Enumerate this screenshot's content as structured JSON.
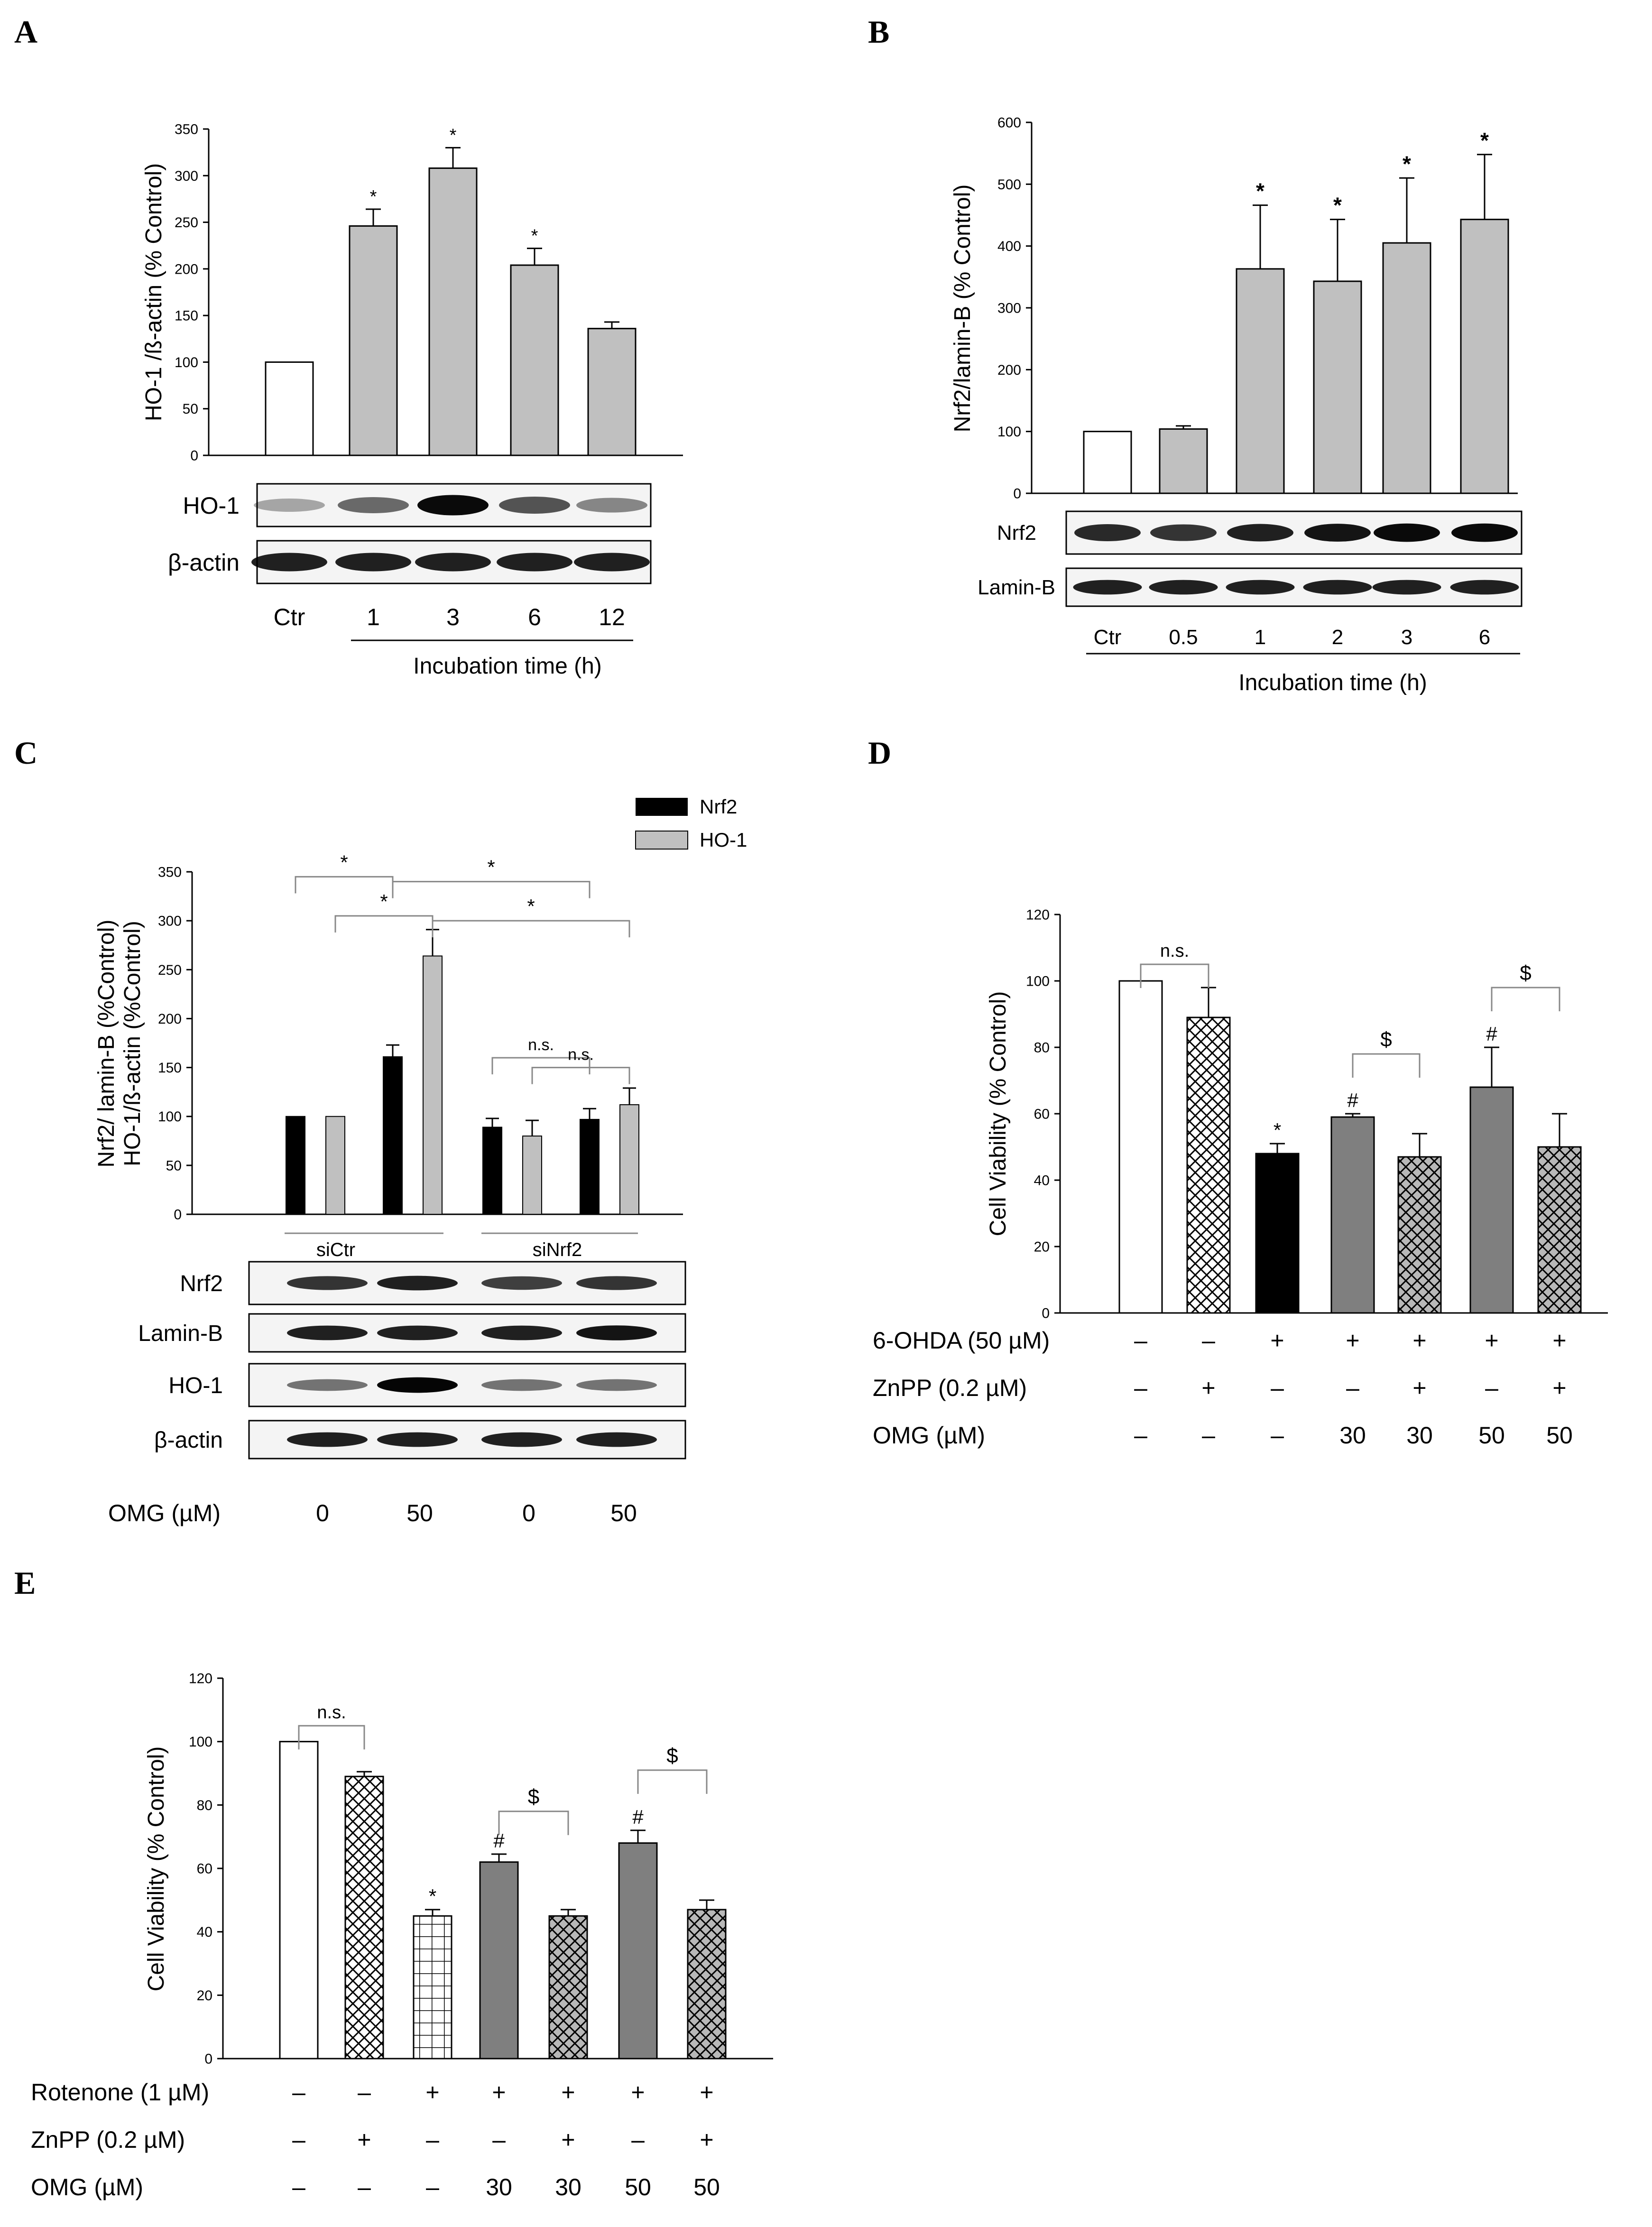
{
  "panels": {
    "A": {
      "letter": "A",
      "chart_data": {
        "type": "bar",
        "ylabel": "HO-1 /ß-actin (% Control)",
        "ylim": [
          0,
          350
        ],
        "yticks": [
          "0",
          "50",
          "100",
          "150",
          "200",
          "250",
          "300",
          "350"
        ],
        "categories": [
          "Ctr",
          "1",
          "3",
          "6",
          "12"
        ],
        "values": [
          100,
          246,
          308,
          204,
          136
        ],
        "errors": [
          0,
          18,
          22,
          18,
          7
        ],
        "significance": [
          "",
          "*",
          "*",
          "*",
          ""
        ],
        "fills": [
          "#ffffff",
          "#c0c0c0",
          "#c0c0c0",
          "#c0c0c0",
          "#c0c0c0"
        ]
      },
      "blots": [
        {
          "label": "HO-1",
          "intensity": [
            0.2,
            0.5,
            0.95,
            0.6,
            0.35
          ]
        },
        {
          "label": "β-actin",
          "intensity": [
            0.85,
            0.85,
            0.85,
            0.85,
            0.85
          ]
        }
      ],
      "xlabel": "Incubation time (h)"
    },
    "B": {
      "letter": "B",
      "chart_data": {
        "type": "bar",
        "ylabel": "Nrf2/lamin-B (% Control)",
        "ylim": [
          0,
          600
        ],
        "yticks": [
          "0",
          "100",
          "200",
          "300",
          "400",
          "500",
          "600"
        ],
        "categories": [
          "Ctr",
          "0.5",
          "1",
          "2",
          "3",
          "6"
        ],
        "values": [
          100,
          104,
          363,
          343,
          405,
          443
        ],
        "errors": [
          0,
          5,
          103,
          100,
          105,
          105
        ],
        "significance": [
          "",
          "",
          "*",
          "*",
          "*",
          "*"
        ],
        "fills": [
          "#ffffff",
          "#c0c0c0",
          "#c0c0c0",
          "#c0c0c0",
          "#c0c0c0",
          "#c0c0c0"
        ]
      },
      "blots": [
        {
          "label": "Nrf2",
          "intensity": [
            0.8,
            0.75,
            0.85,
            0.9,
            0.95,
            0.95
          ]
        },
        {
          "label": "Lamin-B",
          "intensity": [
            0.85,
            0.85,
            0.85,
            0.85,
            0.85,
            0.85
          ]
        }
      ],
      "xlabel": "Incubation time (h)"
    },
    "C": {
      "letter": "C",
      "chart_data": {
        "type": "bar",
        "ylabel_line1": "Nrf2/ lamin-B (%Control)",
        "ylabel_line2": "HO-1/ß-actin (%Control)",
        "ylim": [
          0,
          350
        ],
        "yticks": [
          "0",
          "50",
          "100",
          "150",
          "200",
          "250",
          "300",
          "350"
        ],
        "groups": [
          "siCtr",
          "siNrf2"
        ],
        "series": [
          {
            "name": "Nrf2",
            "color": "#000000",
            "values": [
              100,
              161,
              89,
              97
            ],
            "errors": [
              0,
              12,
              9,
              11
            ]
          },
          {
            "name": "HO-1",
            "color": "#c0c0c0",
            "values": [
              100,
              264,
              80,
              112
            ],
            "errors": [
              0,
              27,
              16,
              17
            ]
          }
        ],
        "comparisons": [
          {
            "label": "*",
            "from_bar": 0,
            "to_bar": 2,
            "y": 345
          },
          {
            "label": "*",
            "from_bar": 2,
            "to_bar": 6,
            "y": 340
          },
          {
            "label": "*",
            "from_bar": 1,
            "to_bar": 3,
            "y": 305
          },
          {
            "label": "*",
            "from_bar": 3,
            "to_bar": 7,
            "y": 300
          },
          {
            "label": "n.s.",
            "from_bar": 4,
            "to_bar": 6,
            "y": 160
          },
          {
            "label": "n.s.",
            "from_bar": 5,
            "to_bar": 7,
            "y": 150
          }
        ]
      },
      "blots": [
        {
          "label": "Nrf2",
          "intensity": [
            0.75,
            0.85,
            0.7,
            0.75
          ]
        },
        {
          "label": "Lamin-B",
          "intensity": [
            0.85,
            0.85,
            0.85,
            0.9
          ]
        },
        {
          "label": "HO-1",
          "intensity": [
            0.45,
            0.98,
            0.45,
            0.45
          ]
        },
        {
          "label": "β-actin",
          "intensity": [
            0.85,
            0.85,
            0.85,
            0.85
          ]
        }
      ],
      "treatment_label": "OMG (µM)",
      "treatment_values": [
        "0",
        "50",
        "0",
        "50"
      ]
    },
    "D": {
      "letter": "D",
      "chart_data": {
        "type": "bar",
        "ylabel": "Cell Viability (% Control)",
        "ylim": [
          0,
          120
        ],
        "yticks": [
          "0",
          "20",
          "40",
          "60",
          "80",
          "100",
          "120"
        ],
        "values": [
          100,
          89,
          48,
          59,
          47,
          68,
          50
        ],
        "errors": [
          0,
          9,
          3,
          1,
          7,
          12,
          10
        ],
        "patterns": [
          "white",
          "crosshatch",
          "black",
          "gray",
          "crosshatch-gray",
          "gray",
          "crosshatch-gray"
        ],
        "marks": [
          "",
          "",
          "*",
          "#",
          "",
          "#",
          ""
        ],
        "comparisons": [
          {
            "label": "n.s.",
            "from_bar": 0,
            "to_bar": 1,
            "y": 105
          },
          {
            "label": "$",
            "from_bar": 3,
            "to_bar": 4,
            "y": 78
          },
          {
            "label": "$",
            "from_bar": 5,
            "to_bar": 6,
            "y": 98
          }
        ]
      },
      "treatments": [
        {
          "label": "6-OHDA (50 µM)",
          "values": [
            "–",
            "–",
            "+",
            "+",
            "+",
            "+",
            "+"
          ]
        },
        {
          "label": "ZnPP (0.2 µM)",
          "values": [
            "–",
            "+",
            "–",
            "–",
            "+",
            "–",
            "+"
          ]
        },
        {
          "label": "OMG (µM)",
          "values": [
            "–",
            "–",
            "–",
            "30",
            "30",
            "50",
            "50"
          ]
        }
      ]
    },
    "E": {
      "letter": "E",
      "chart_data": {
        "type": "bar",
        "ylabel": "Cell Viability (% Control)",
        "ylim": [
          0,
          120
        ],
        "yticks": [
          "0",
          "20",
          "40",
          "60",
          "80",
          "100",
          "120"
        ],
        "values": [
          100,
          89,
          45,
          62,
          45,
          68,
          47
        ],
        "errors": [
          0,
          1.5,
          2,
          2.5,
          2,
          4,
          3
        ],
        "patterns": [
          "white",
          "crosshatch",
          "grid",
          "gray",
          "crosshatch-gray",
          "gray",
          "crosshatch-gray"
        ],
        "marks": [
          "",
          "",
          "*",
          "#",
          "",
          "#",
          ""
        ],
        "comparisons": [
          {
            "label": "n.s.",
            "from_bar": 0,
            "to_bar": 1,
            "y": 105
          },
          {
            "label": "$",
            "from_bar": 3,
            "to_bar": 4,
            "y": 78
          },
          {
            "label": "$",
            "from_bar": 5,
            "to_bar": 6,
            "y": 91
          }
        ]
      },
      "treatments": [
        {
          "label": "Rotenone (1 µM)",
          "values": [
            "–",
            "–",
            "+",
            "+",
            "+",
            "+",
            "+"
          ]
        },
        {
          "label": "ZnPP (0.2 µM)",
          "values": [
            "–",
            "+",
            "–",
            "–",
            "+",
            "–",
            "+"
          ]
        },
        {
          "label": "OMG (µM)",
          "values": [
            "–",
            "–",
            "–",
            "30",
            "30",
            "50",
            "50"
          ]
        }
      ]
    }
  }
}
